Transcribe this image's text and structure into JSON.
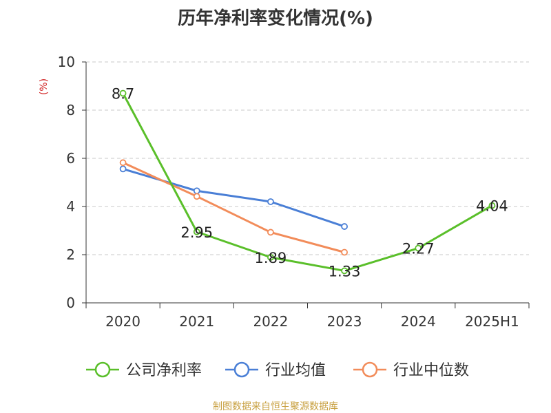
{
  "chart_data": {
    "type": "line",
    "title": "历年净利率变化情况(%)",
    "ylabel": "(%)",
    "xlabel": "",
    "categories": [
      "2020",
      "2021",
      "2022",
      "2023",
      "2024",
      "2025H1"
    ],
    "ylim": [
      0,
      10
    ],
    "yticks": [
      "0",
      "2",
      "4",
      "6",
      "8",
      "10"
    ],
    "grid": true,
    "legend_position": "bottom",
    "series": [
      {
        "name": "公司净利率",
        "color": "#5abf2a",
        "values": [
          8.7,
          2.95,
          1.89,
          1.33,
          2.27,
          4.04
        ],
        "labels": [
          "8.7",
          "2.95",
          "1.89",
          "1.33",
          "2.27",
          "4.04"
        ]
      },
      {
        "name": "行业均值",
        "color": "#4a7fd6",
        "values": [
          5.56,
          4.65,
          4.2,
          3.17,
          null,
          null
        ]
      },
      {
        "name": "行业中位数",
        "color": "#f28c5a",
        "values": [
          5.82,
          4.42,
          2.93,
          2.1,
          null,
          null
        ]
      }
    ]
  },
  "source": "制图数据来自恒生聚源数据库"
}
